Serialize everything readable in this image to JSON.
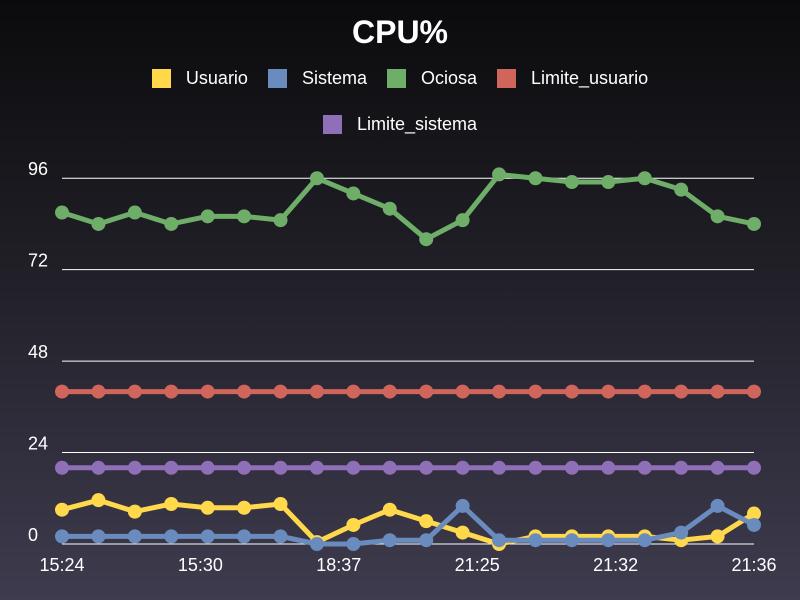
{
  "chart_data": {
    "type": "line",
    "title": "CPU%",
    "xlabel": "",
    "ylabel": "",
    "ylim": [
      0,
      100
    ],
    "yticks": [
      0,
      24,
      48,
      72,
      96
    ],
    "x_tick_labels": [
      "15:24",
      "15:30",
      "18:37",
      "21:25",
      "21:32",
      "21:36"
    ],
    "grid": "horizontal",
    "legend": "top-center",
    "series": [
      {
        "name": "Usuario",
        "color": "#ffd84c",
        "values": [
          9,
          11.5,
          8.5,
          10.5,
          9.5,
          9.5,
          10.5,
          0.5,
          5,
          9,
          6,
          3,
          0,
          2,
          2,
          2,
          2,
          1,
          2,
          8
        ]
      },
      {
        "name": "Sistema",
        "color": "#6a8bbd",
        "values": [
          2,
          2,
          2,
          2,
          2,
          2,
          2,
          0,
          0,
          1,
          1,
          10,
          1,
          1,
          1,
          1,
          1,
          3,
          10,
          5
        ]
      },
      {
        "name": "Ociosa",
        "color": "#6fae69",
        "values": [
          87,
          84,
          87,
          84,
          86,
          86,
          85,
          96,
          92,
          88,
          80,
          85,
          97,
          96,
          95,
          95,
          96,
          93,
          86,
          84
        ]
      },
      {
        "name": "Limite_usuario",
        "color": "#d0655b",
        "values": [
          40,
          40,
          40,
          40,
          40,
          40,
          40,
          40,
          40,
          40,
          40,
          40,
          40,
          40,
          40,
          40,
          40,
          40,
          40,
          40
        ]
      },
      {
        "name": "Limite_sistema",
        "color": "#8e6fb8",
        "values": [
          20,
          20,
          20,
          20,
          20,
          20,
          20,
          20,
          20,
          20,
          20,
          20,
          20,
          20,
          20,
          20,
          20,
          20,
          20,
          20
        ]
      }
    ]
  }
}
